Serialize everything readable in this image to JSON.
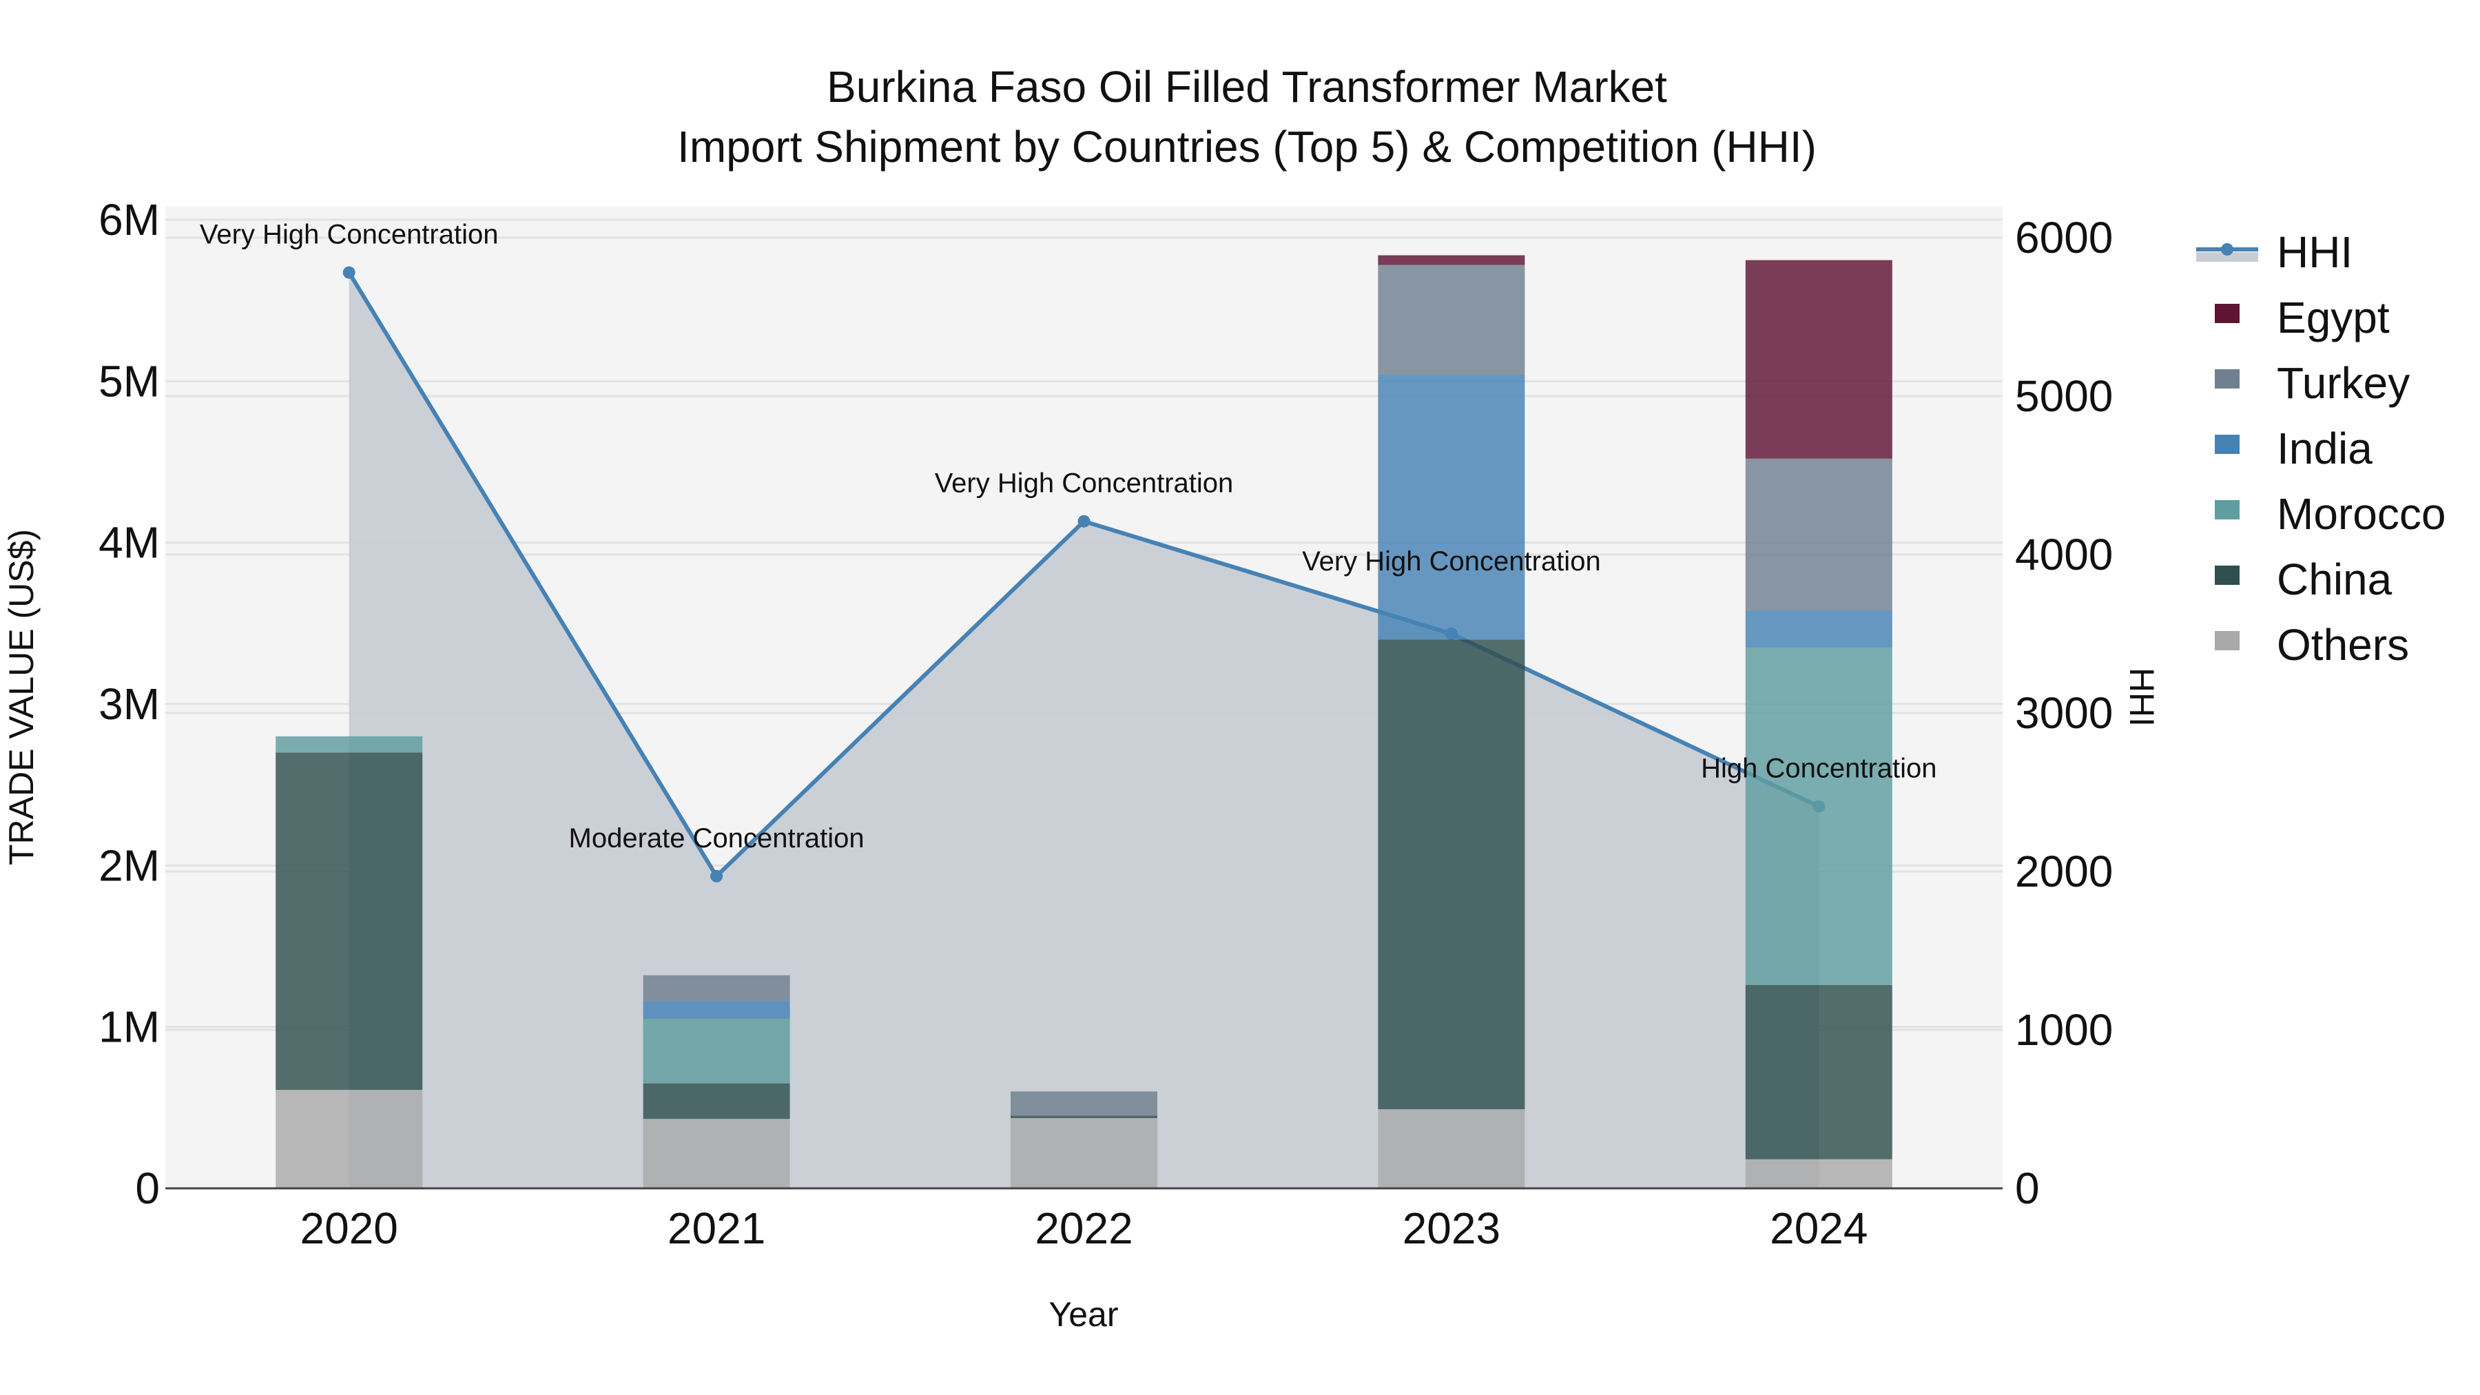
{
  "chart_data": {
    "type": "bar",
    "stacked": true,
    "title": "Burkina Faso Oil Filled Transformer Market",
    "subtitle": "Import Shipment by Countries (Top 5) & Competition (HHI)",
    "xlabel": "Year",
    "ylabel": "TRADE VALUE (US$)",
    "y2label": "HHI",
    "categories": [
      "2020",
      "2021",
      "2022",
      "2023",
      "2024"
    ],
    "ylim": [
      0,
      6000000
    ],
    "y2lim": [
      0,
      6000
    ],
    "yticks": [
      {
        "value": 0,
        "label": "0"
      },
      {
        "value": 1000000,
        "label": "1M"
      },
      {
        "value": 2000000,
        "label": "2M"
      },
      {
        "value": 3000000,
        "label": "3M"
      },
      {
        "value": 4000000,
        "label": "4M"
      },
      {
        "value": 5000000,
        "label": "5M"
      },
      {
        "value": 6000000,
        "label": "6M"
      }
    ],
    "y2ticks": [
      {
        "value": 0,
        "label": "0"
      },
      {
        "value": 1000,
        "label": "1000"
      },
      {
        "value": 2000,
        "label": "2000"
      },
      {
        "value": 3000,
        "label": "3000"
      },
      {
        "value": 4000,
        "label": "4000"
      },
      {
        "value": 5000,
        "label": "5000"
      },
      {
        "value": 6000,
        "label": "6000"
      }
    ],
    "grid": true,
    "legend_position": "right",
    "series": [
      {
        "name": "Others",
        "color": "#a9a9a9",
        "values": [
          610000,
          430000,
          435000,
          490000,
          180000
        ]
      },
      {
        "name": "China",
        "color": "#2f4f4f",
        "values": [
          2090000,
          220000,
          15000,
          2910000,
          1080000
        ]
      },
      {
        "name": "Morocco",
        "color": "#5f9ea0",
        "values": [
          100000,
          400000,
          0,
          0,
          2090000
        ]
      },
      {
        "name": "India",
        "color": "#4682b4",
        "values": [
          0,
          110000,
          0,
          1640000,
          230000
        ]
      },
      {
        "name": "Turkey",
        "color": "#708090",
        "values": [
          0,
          160000,
          150000,
          680000,
          940000
        ]
      },
      {
        "name": "Egypt",
        "color": "#5f1434",
        "values": [
          0,
          0,
          0,
          60000,
          1230000
        ]
      }
    ],
    "line_series": {
      "name": "HHI",
      "axis": "y2",
      "color": "#4682b4",
      "fill_color": "#c8cdd5",
      "values": [
        5780,
        1970,
        4210,
        3500,
        2410
      ],
      "annotations": [
        "Very High Concentration",
        "Moderate Concentration",
        "Very High Concentration",
        "Very High Concentration",
        "High Concentration"
      ]
    },
    "legend": [
      "HHI",
      "Egypt",
      "Turkey",
      "India",
      "Morocco",
      "China",
      "Others"
    ]
  }
}
